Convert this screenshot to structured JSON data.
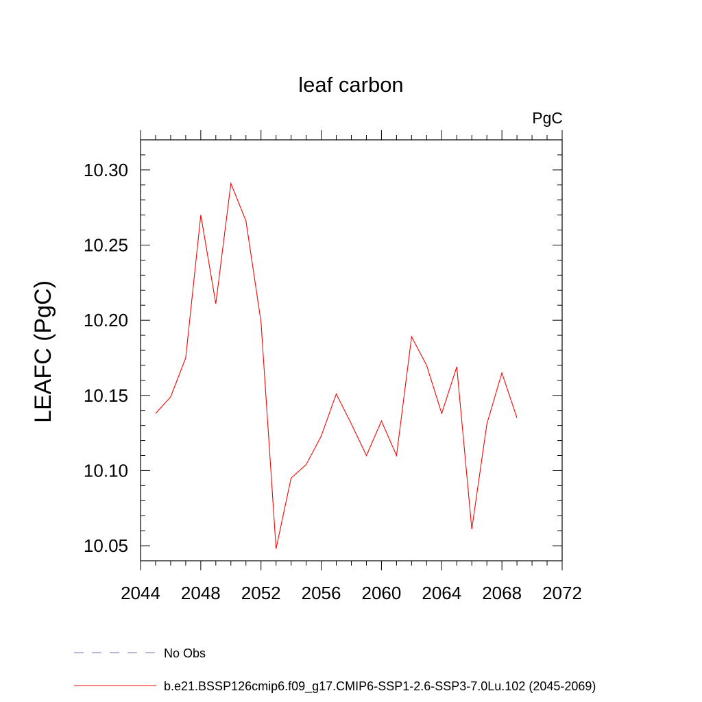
{
  "chart_data": {
    "type": "line",
    "title": "leaf carbon",
    "units": "PgC",
    "ylabel": "LEAFC  (PgC)",
    "xlabel": "",
    "xlim": [
      2044,
      2072
    ],
    "ylim": [
      10.04,
      10.32
    ],
    "xticks": [
      2044,
      2048,
      2052,
      2056,
      2060,
      2064,
      2068,
      2072
    ],
    "yticks": [
      10.05,
      10.1,
      10.15,
      10.2,
      10.25,
      10.3
    ],
    "ytick_labels": [
      "10.05",
      "10.10",
      "10.15",
      "10.20",
      "10.25",
      "10.30"
    ],
    "series": [
      {
        "name": "b.e21.BSSP126cmip6.f09_g17.CMIP6-SSP1-2.6-SSP3-7.0Lu.102 (2045-2069)",
        "color": "#ff0000",
        "x": [
          2045,
          2046,
          2047,
          2048,
          2049,
          2050,
          2051,
          2052,
          2053,
          2054,
          2055,
          2056,
          2057,
          2058,
          2059,
          2060,
          2061,
          2062,
          2063,
          2064,
          2065,
          2066,
          2067,
          2068,
          2069
        ],
        "values": [
          10.138,
          10.149,
          10.175,
          10.27,
          10.211,
          10.291,
          10.266,
          10.199,
          10.048,
          10.095,
          10.104,
          10.123,
          10.151,
          10.131,
          10.11,
          10.133,
          10.11,
          10.189,
          10.17,
          10.138,
          10.169,
          10.061,
          10.131,
          10.165,
          10.135
        ]
      }
    ],
    "legend": [
      {
        "label": "No Obs",
        "style": "dashed",
        "color": "#7b6fbf"
      },
      {
        "label": "b.e21.BSSP126cmip6.f09_g17.CMIP6-SSP1-2.6-SSP3-7.0Lu.102 (2045-2069)",
        "style": "solid",
        "color": "#ff0000"
      }
    ],
    "legend_position": "bottom-left"
  }
}
